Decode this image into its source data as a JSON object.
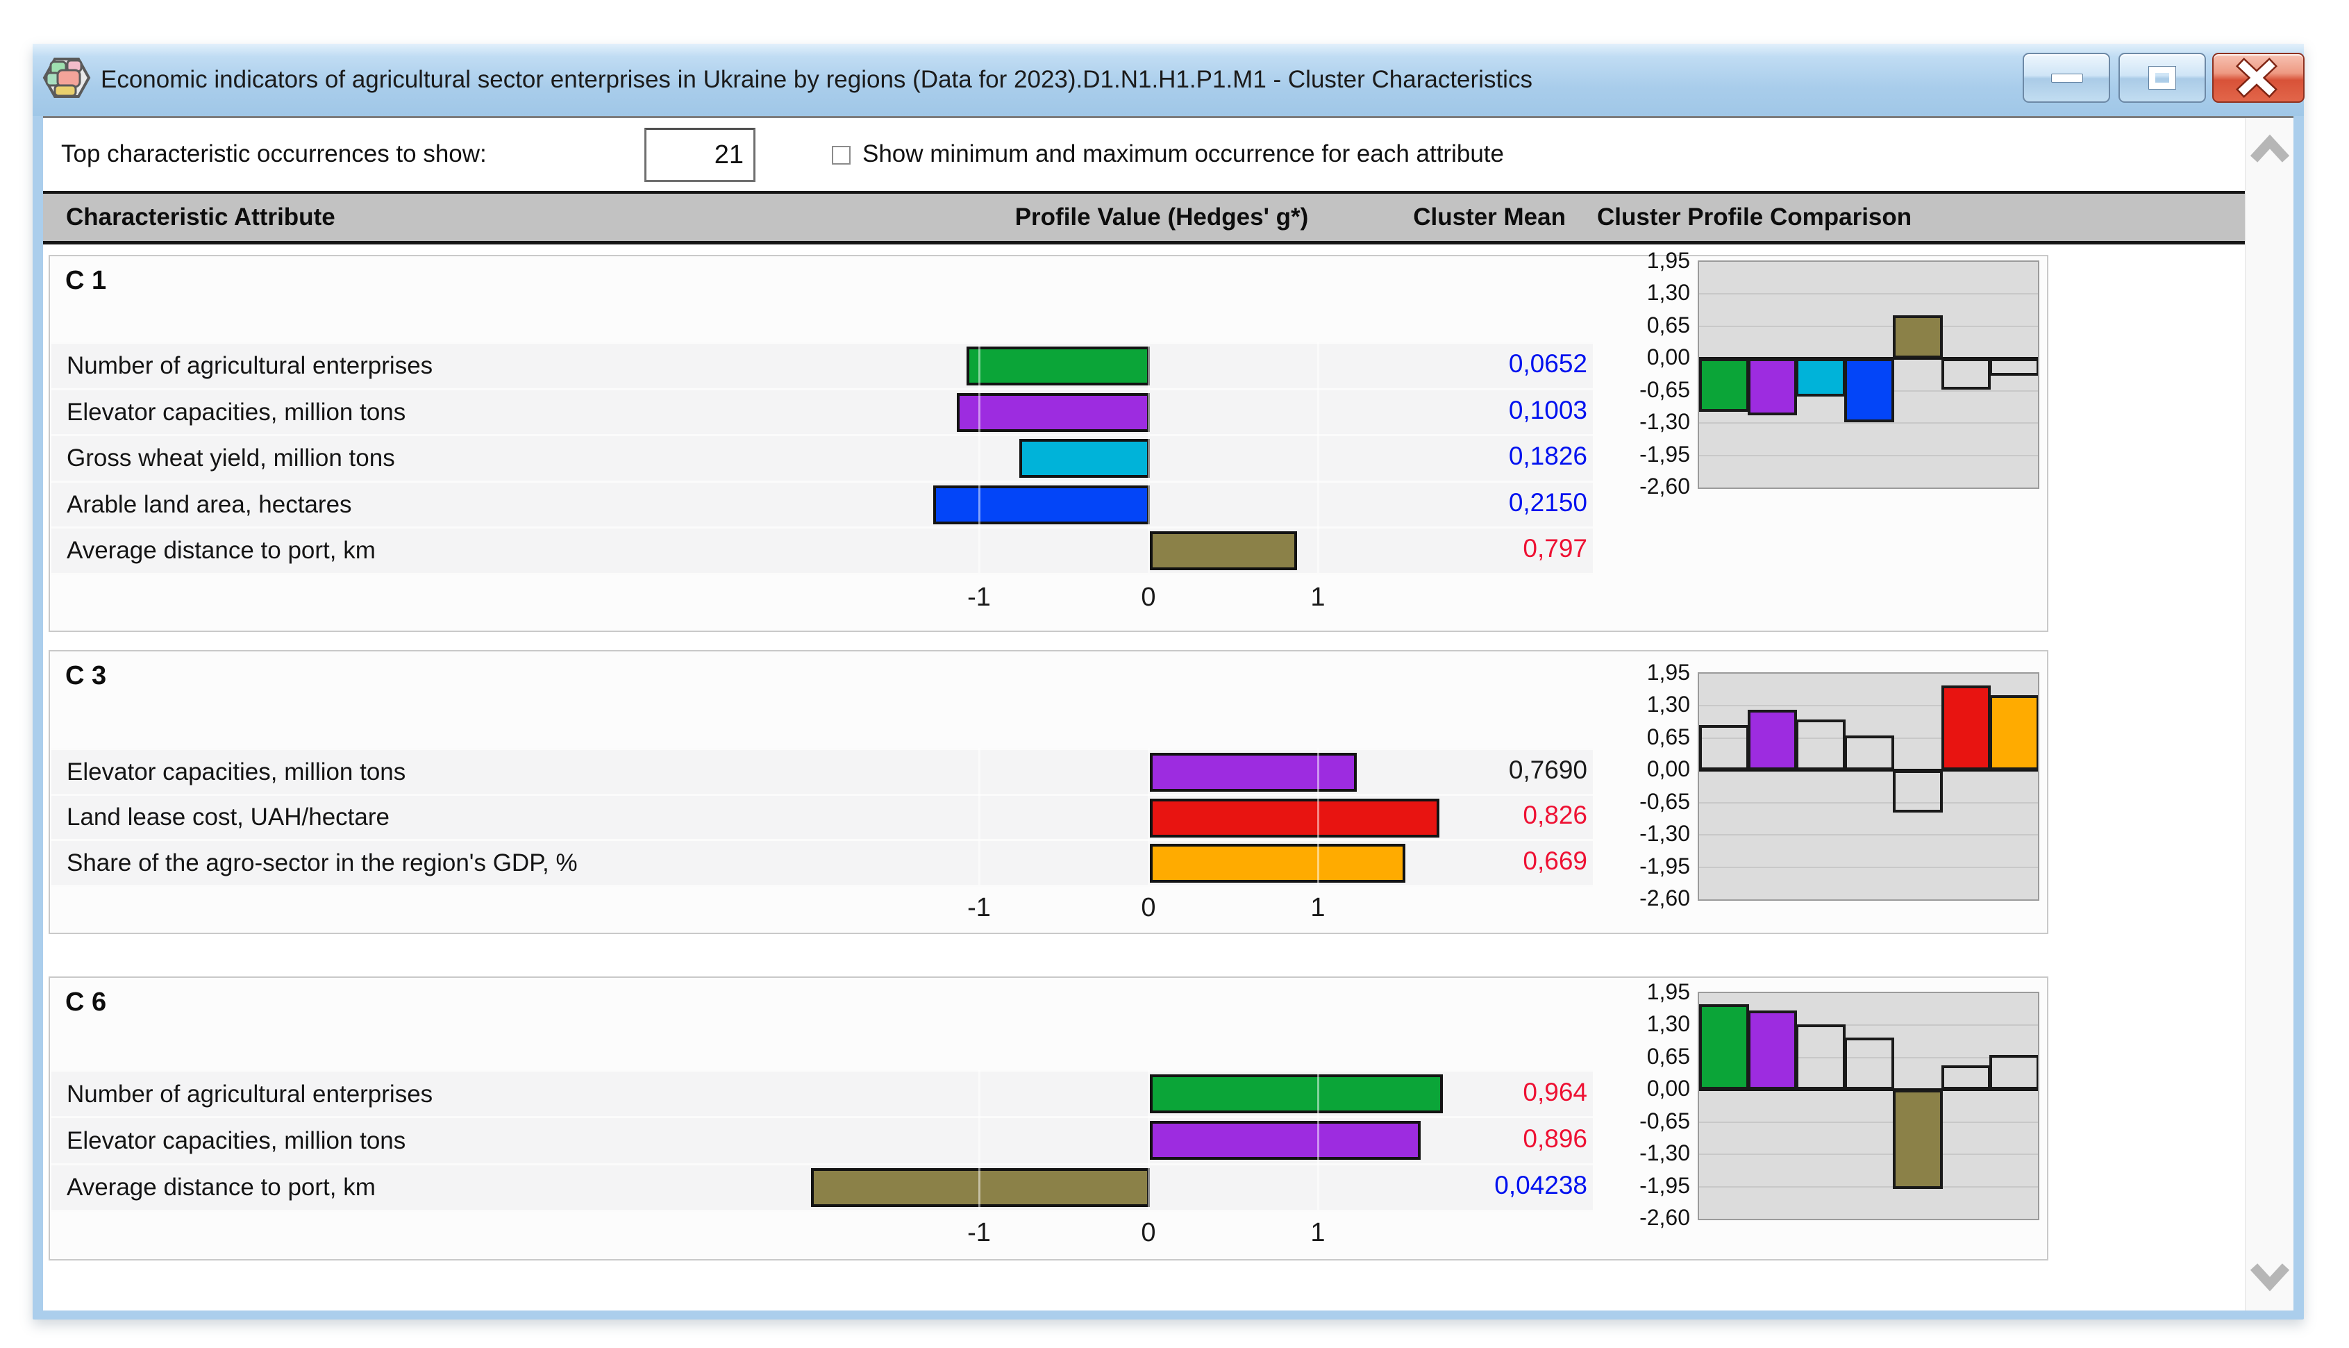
{
  "window": {
    "title": "Economic indicators of agricultural sector enterprises in Ukraine by regions (Data for 2023).D1.N1.H1.P1.M1 - Cluster Characteristics",
    "buttons": {
      "minimize": "minimize",
      "maximize": "maximize",
      "close": "close"
    }
  },
  "toolbar": {
    "occurrences_label": "Top characteristic occurrences to show:",
    "occurrences_value": "21",
    "minmax_label": "Show minimum and maximum occurrence for each attribute",
    "minmax_checked": false
  },
  "columns": {
    "characteristic": "Characteristic Attribute",
    "profile": "Profile Value (Hedges' g*)",
    "mean": "Cluster Mean",
    "comparison": "Cluster Profile Comparison"
  },
  "palette": {
    "green": "#0ba538",
    "purple": "#9d2ce0",
    "cyan": "#00b3d9",
    "blue": "#0345f8",
    "olive": "#8b8148",
    "red": "#e81411",
    "orange": "#ffab00",
    "mean_blue": "#0011ef",
    "mean_red": "#ee1133",
    "mean_black": "#1a1a1a",
    "plot_bg": "#dcdcdc",
    "titlebar_blue": "#a9cdeb"
  },
  "attributes": [
    {
      "name": "Number of agricultural enterprises",
      "color": "green"
    },
    {
      "name": "Elevator capacities, million tons",
      "color": "purple"
    },
    {
      "name": "Gross wheat yield, million tons",
      "color": "cyan"
    },
    {
      "name": "Arable land area, hectares",
      "color": "blue"
    },
    {
      "name": "Average distance to port, km",
      "color": "olive"
    },
    {
      "name": "Land lease cost, UAH/hectare",
      "color": "red"
    },
    {
      "name": "Share of the agro-sector in the region's GDP, %",
      "color": "orange"
    }
  ],
  "profile_axis": {
    "tick_labels": [
      "-1",
      "0",
      "1"
    ],
    "tick_values": [
      -1,
      0,
      1
    ]
  },
  "comparison_axis": {
    "tick_labels": [
      "1,95",
      "1,30",
      "0,65",
      "0,00",
      "-0,65",
      "-1,30",
      "-1,95",
      "-2,60"
    ],
    "max": 1.95,
    "min": -2.6,
    "step": 0.65,
    "grid": true
  },
  "chart_data": [
    {
      "cluster": "C 1",
      "type": "bar",
      "rows": [
        {
          "label": "Number of agricultural enterprises",
          "value": -1.08,
          "color": "green",
          "mean": "0,0652",
          "mean_color": "mean_blue"
        },
        {
          "label": "Elevator capacities, million tons",
          "value": -1.14,
          "color": "purple",
          "mean": "0,1003",
          "mean_color": "mean_blue"
        },
        {
          "label": "Gross wheat yield, million tons",
          "value": -0.77,
          "color": "cyan",
          "mean": "0,1826",
          "mean_color": "mean_blue"
        },
        {
          "label": "Arable land area, hectares",
          "value": -1.28,
          "color": "blue",
          "mean": "0,2150",
          "mean_color": "mean_blue"
        },
        {
          "label": "Average distance to port, km",
          "value": 0.87,
          "color": "olive",
          "mean": "0,797",
          "mean_color": "mean_red"
        }
      ],
      "comparison_values": [
        -1.08,
        -1.14,
        -0.77,
        -1.28,
        0.87,
        -0.62,
        -0.34
      ],
      "comparison_highlight": [
        true,
        true,
        true,
        true,
        true,
        false,
        false
      ]
    },
    {
      "cluster": "C 3",
      "type": "bar",
      "rows": [
        {
          "label": "Elevator capacities, million tons",
          "value": 1.22,
          "color": "purple",
          "mean": "0,7690",
          "mean_color": "mean_black"
        },
        {
          "label": "Land lease cost, UAH/hectare",
          "value": 1.71,
          "color": "red",
          "mean": "0,826",
          "mean_color": "mean_red"
        },
        {
          "label": "Share of the agro-sector in the region's GDP, %",
          "value": 1.51,
          "color": "orange",
          "mean": "0,669",
          "mean_color": "mean_red"
        }
      ],
      "comparison_values": [
        0.92,
        1.22,
        1.03,
        0.71,
        -0.85,
        1.71,
        1.51
      ],
      "comparison_highlight": [
        false,
        true,
        false,
        false,
        false,
        true,
        true
      ]
    },
    {
      "cluster": "C 6",
      "type": "bar",
      "rows": [
        {
          "label": "Number of agricultural enterprises",
          "value": 1.73,
          "color": "green",
          "mean": "0,964",
          "mean_color": "mean_red"
        },
        {
          "label": "Elevator capacities, million tons",
          "value": 1.6,
          "color": "purple",
          "mean": "0,896",
          "mean_color": "mean_red"
        },
        {
          "label": "Average distance to port, km",
          "value": -2.0,
          "color": "olive",
          "mean": "0,04238",
          "mean_color": "mean_blue"
        }
      ],
      "comparison_values": [
        1.73,
        1.6,
        1.32,
        1.06,
        -2.0,
        0.5,
        0.7
      ],
      "comparison_highlight": [
        true,
        true,
        false,
        false,
        true,
        false,
        false
      ]
    }
  ]
}
